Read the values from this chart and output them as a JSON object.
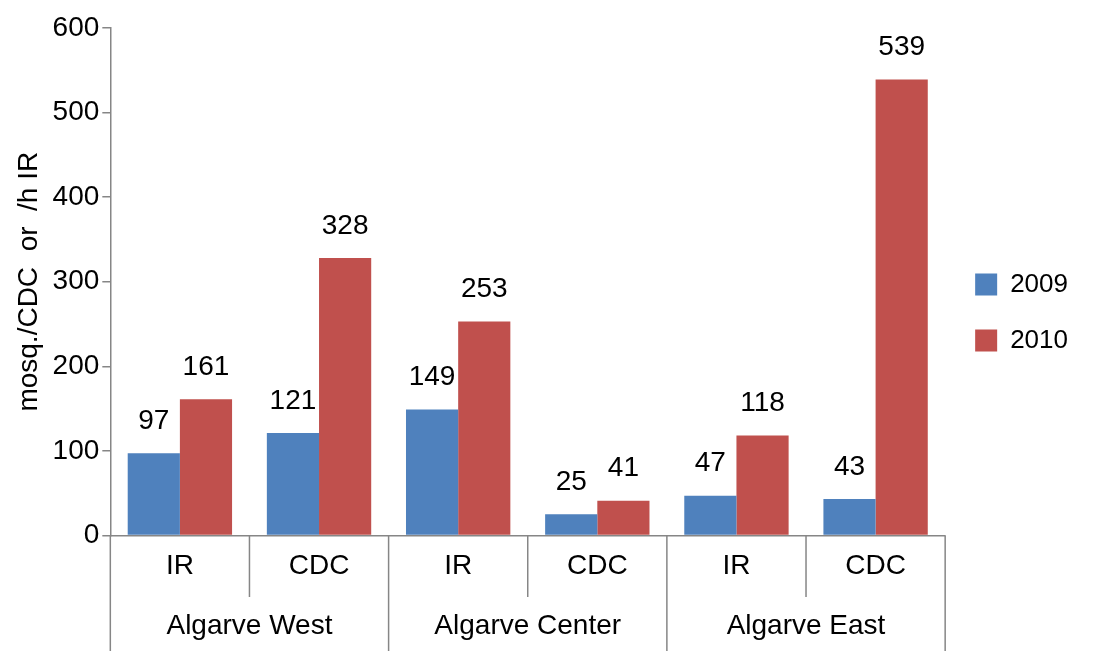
{
  "chart_data": {
    "type": "bar",
    "ylabel": "mosq./CDC  or  /h IR",
    "categories": [
      "IR",
      "CDC",
      "IR",
      "CDC",
      "IR",
      "CDC"
    ],
    "series": [
      {
        "name": "2009",
        "color": "#4f81bd",
        "values": [
          97,
          121,
          149,
          25,
          47,
          43
        ]
      },
      {
        "name": "2010",
        "color": "#c0504d",
        "values": [
          161,
          328,
          253,
          41,
          118,
          539
        ]
      }
    ],
    "ylim": [
      0,
      600
    ],
    "yticks": [
      0,
      100,
      200,
      300,
      400,
      500,
      600
    ],
    "grid": false,
    "legend": "right",
    "data_labels": true,
    "annotations": [
      "Algarve West",
      "Algarve Center",
      "Algarve East"
    ]
  }
}
